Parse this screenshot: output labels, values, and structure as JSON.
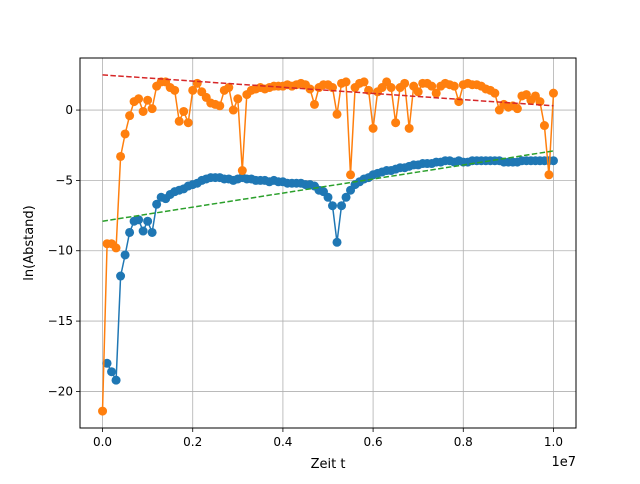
{
  "chart_data": {
    "type": "line",
    "xlabel": "Zeit t",
    "ylabel": "ln(Abstand)",
    "x_offset_label": "1e7",
    "xlim": [
      -0.05,
      1.05
    ],
    "ylim": [
      -22.6,
      3.7
    ],
    "x_ticks": [
      0.0,
      0.2,
      0.4,
      0.6,
      0.8,
      1.0
    ],
    "x_tick_labels": [
      "0.0",
      "0.2",
      "0.4",
      "0.6",
      "0.8",
      "1.0"
    ],
    "y_ticks": [
      -20,
      -15,
      -10,
      -5,
      0
    ],
    "y_tick_labels": [
      "−20",
      "−15",
      "−10",
      "−5",
      "0"
    ],
    "grid": true,
    "series": [
      {
        "color": "#1f77b4",
        "style": "line-markers",
        "x": [
          0.01,
          0.02,
          0.03,
          0.04,
          0.05,
          0.06,
          0.07,
          0.08,
          0.09,
          0.1,
          0.11,
          0.12,
          0.13,
          0.14,
          0.15,
          0.16,
          0.17,
          0.18,
          0.19,
          0.2,
          0.21,
          0.22,
          0.23,
          0.24,
          0.25,
          0.26,
          0.27,
          0.28,
          0.29,
          0.3,
          0.31,
          0.32,
          0.33,
          0.34,
          0.35,
          0.36,
          0.37,
          0.38,
          0.39,
          0.4,
          0.41,
          0.42,
          0.43,
          0.44,
          0.45,
          0.46,
          0.47,
          0.48,
          0.49,
          0.5,
          0.51,
          0.52,
          0.53,
          0.54,
          0.55,
          0.56,
          0.57,
          0.58,
          0.59,
          0.6,
          0.61,
          0.62,
          0.63,
          0.64,
          0.65,
          0.66,
          0.67,
          0.68,
          0.69,
          0.7,
          0.71,
          0.72,
          0.73,
          0.74,
          0.75,
          0.76,
          0.77,
          0.78,
          0.79,
          0.8,
          0.81,
          0.82,
          0.83,
          0.84,
          0.85,
          0.86,
          0.87,
          0.88,
          0.89,
          0.9,
          0.91,
          0.92,
          0.93,
          0.94,
          0.95,
          0.96,
          0.97,
          0.98,
          0.99,
          1.0
        ],
        "y": [
          -18.0,
          -18.6,
          -19.2,
          -11.8,
          -10.3,
          -8.7,
          -7.9,
          -7.8,
          -8.6,
          -7.9,
          -8.7,
          -6.7,
          -6.2,
          -6.3,
          -6.0,
          -5.8,
          -5.7,
          -5.6,
          -5.4,
          -5.3,
          -5.2,
          -5.0,
          -4.9,
          -4.8,
          -4.8,
          -4.8,
          -4.9,
          -4.9,
          -5.0,
          -4.9,
          -4.8,
          -4.9,
          -4.9,
          -5.0,
          -5.0,
          -5.0,
          -5.1,
          -5.0,
          -5.1,
          -5.1,
          -5.2,
          -5.2,
          -5.2,
          -5.2,
          -5.3,
          -5.3,
          -5.4,
          -5.7,
          -5.8,
          -6.2,
          -6.8,
          -9.4,
          -6.8,
          -6.2,
          -5.7,
          -5.3,
          -5.1,
          -4.9,
          -4.8,
          -4.6,
          -4.5,
          -4.4,
          -4.3,
          -4.3,
          -4.2,
          -4.1,
          -4.1,
          -4.0,
          -3.9,
          -3.9,
          -3.8,
          -3.8,
          -3.8,
          -3.7,
          -3.7,
          -3.6,
          -3.6,
          -3.7,
          -3.6,
          -3.7,
          -3.7,
          -3.6,
          -3.6,
          -3.6,
          -3.6,
          -3.6,
          -3.6,
          -3.6,
          -3.7,
          -3.7,
          -3.7,
          -3.7,
          -3.6,
          -3.6,
          -3.6,
          -3.6,
          -3.6,
          -3.6,
          -3.6,
          -3.6
        ]
      },
      {
        "color": "#ff7f0e",
        "style": "line-markers",
        "x": [
          0.0,
          0.01,
          0.02,
          0.03,
          0.04,
          0.05,
          0.06,
          0.07,
          0.08,
          0.09,
          0.1,
          0.11,
          0.12,
          0.13,
          0.14,
          0.15,
          0.16,
          0.17,
          0.18,
          0.19,
          0.2,
          0.21,
          0.22,
          0.23,
          0.24,
          0.25,
          0.26,
          0.27,
          0.28,
          0.29,
          0.3,
          0.31,
          0.32,
          0.33,
          0.34,
          0.35,
          0.36,
          0.37,
          0.38,
          0.39,
          0.4,
          0.41,
          0.42,
          0.43,
          0.44,
          0.45,
          0.46,
          0.47,
          0.48,
          0.49,
          0.5,
          0.51,
          0.52,
          0.53,
          0.54,
          0.55,
          0.56,
          0.57,
          0.58,
          0.59,
          0.6,
          0.61,
          0.62,
          0.63,
          0.64,
          0.65,
          0.66,
          0.67,
          0.68,
          0.69,
          0.7,
          0.71,
          0.72,
          0.73,
          0.74,
          0.75,
          0.76,
          0.77,
          0.78,
          0.79,
          0.8,
          0.81,
          0.82,
          0.83,
          0.84,
          0.85,
          0.86,
          0.87,
          0.88,
          0.89,
          0.9,
          0.91,
          0.92,
          0.93,
          0.94,
          0.95,
          0.96,
          0.97,
          0.98,
          0.99,
          1.0
        ],
        "y": [
          -21.4,
          -9.5,
          -9.5,
          -9.8,
          -3.3,
          -1.7,
          -0.4,
          0.6,
          0.8,
          -0.1,
          0.7,
          0.1,
          1.7,
          2.0,
          2.0,
          1.6,
          1.4,
          -0.8,
          -0.1,
          -0.9,
          1.4,
          1.9,
          1.3,
          0.9,
          0.5,
          0.4,
          0.3,
          1.4,
          1.6,
          0.0,
          0.8,
          -4.3,
          1.1,
          1.4,
          1.5,
          1.6,
          1.5,
          1.6,
          1.7,
          1.7,
          1.7,
          1.8,
          1.7,
          1.8,
          1.9,
          1.8,
          1.5,
          0.4,
          1.6,
          1.8,
          1.8,
          1.6,
          -0.3,
          1.9,
          2.0,
          -4.6,
          1.6,
          1.9,
          2.0,
          1.4,
          -1.3,
          1.3,
          1.6,
          2.0,
          1.6,
          -0.9,
          1.6,
          1.9,
          -1.3,
          1.7,
          1.3,
          1.9,
          1.9,
          1.7,
          1.2,
          1.7,
          1.9,
          1.8,
          1.7,
          0.6,
          1.8,
          1.9,
          1.8,
          1.8,
          1.7,
          1.5,
          1.4,
          1.2,
          0.0,
          0.4,
          0.2,
          0.3,
          0.1,
          1.0,
          1.1,
          0.7,
          1.0,
          0.6,
          -1.1,
          -4.6,
          1.2
        ]
      },
      {
        "color": "#2ca02c",
        "style": "dashed",
        "x": [
          0.0,
          1.0
        ],
        "y": [
          -7.9,
          -2.9
        ]
      },
      {
        "color": "#d62728",
        "style": "dashed",
        "x": [
          0.0,
          1.0
        ],
        "y": [
          2.5,
          0.3
        ]
      }
    ]
  }
}
